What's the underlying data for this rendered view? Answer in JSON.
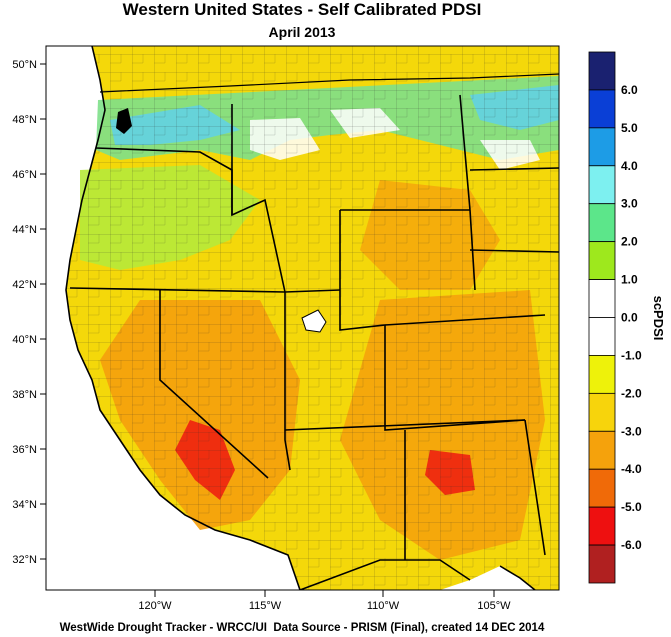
{
  "title": "Western United States - Self Calibrated PDSI",
  "subtitle": "April 2013",
  "footer": "WestWide Drought Tracker - WRCC/UI  Data Source - PRISM (Final), created 14 DEC 2014",
  "map": {
    "lat_labels": [
      "50°N",
      "48°N",
      "46°N",
      "44°N",
      "42°N",
      "40°N",
      "38°N",
      "36°N",
      "34°N",
      "32°N"
    ],
    "lon_labels": [
      "120°W",
      "115°W",
      "110°W",
      "105°W"
    ],
    "lat_range": [
      31.0,
      50.6
    ],
    "lon_range": [
      -124.7,
      -102.7
    ]
  },
  "colorbar": {
    "label": "scPDSI",
    "ticks": [
      "6.0",
      "5.0",
      "4.0",
      "3.0",
      "2.0",
      "1.0",
      "0.0",
      "-1.0",
      "-2.0",
      "-3.0",
      "-4.0",
      "-5.0",
      "-6.0"
    ],
    "colors": [
      "#1a2170",
      "#0a3fd6",
      "#1d9ce6",
      "#7df0f0",
      "#5ce68a",
      "#9ee81d",
      "#ffffff",
      "#ffffff",
      "#eef20a",
      "#f7d40c",
      "#f5a20c",
      "#f06a08",
      "#ee1010",
      "#b02020"
    ]
  }
}
